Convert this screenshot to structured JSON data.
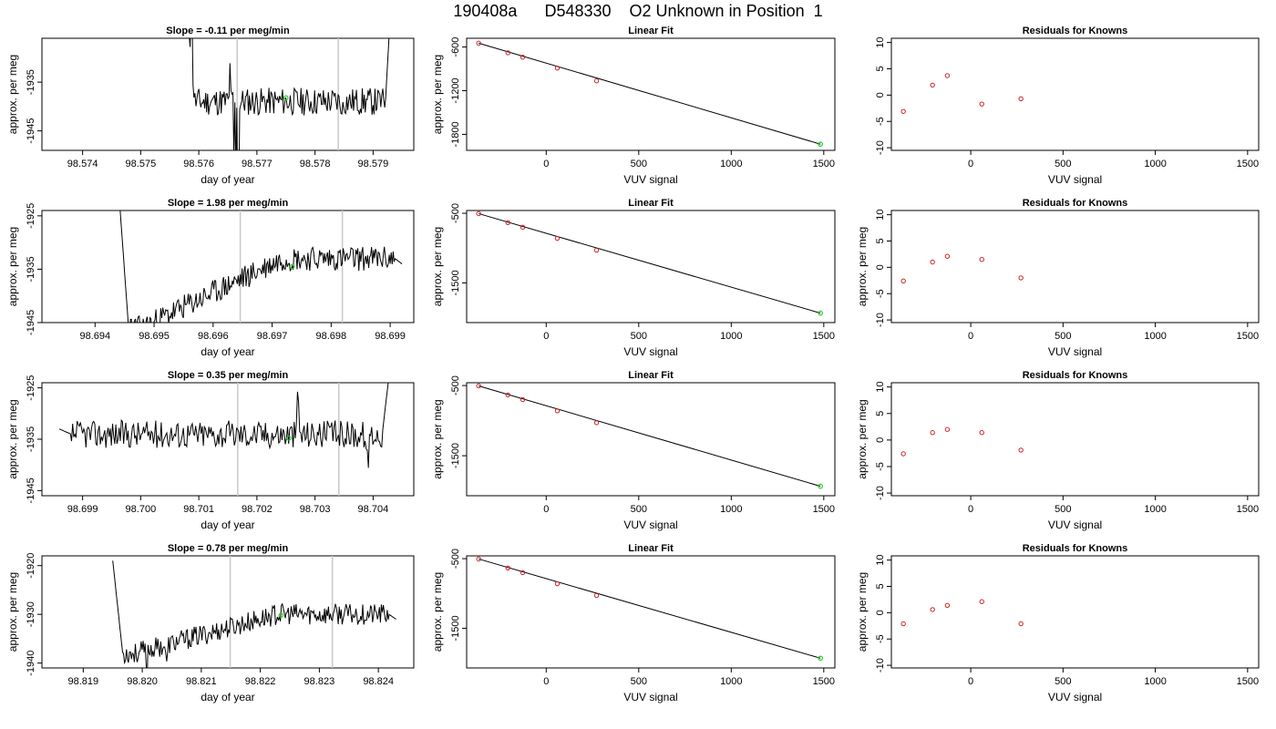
{
  "page_title": "190408a      D548330    O2 Unknown in Position  1",
  "colors": {
    "line": "#000000",
    "marker_known": "#cc2222",
    "marker_unknown": "#22cc22",
    "vline": "#c8c8c8"
  },
  "chart_data": [
    {
      "type": "line",
      "panel": "timeseries",
      "title": "Slope =  -0.11  per meg/min",
      "xlabel": "day of year",
      "ylabel": "approx. per meg",
      "xlim": [
        98.5733,
        98.5797
      ],
      "ylim": [
        -1949,
        -1926
      ],
      "x_ticks": [
        "98.574",
        "98.575",
        "98.576",
        "98.577",
        "98.578",
        "98.579"
      ],
      "y_ticks": [
        "-1945",
        "-1935"
      ],
      "vlines": [
        98.57666,
        98.5784
      ],
      "green_point": [
        98.5775,
        -1938.2
      ],
      "series": [
        {
          "x_start": 98.5758,
          "x_end": 98.5793,
          "n": 210,
          "start": -1920,
          "end": -1920,
          "level": -1939,
          "noise": 1.6,
          "seed": 11,
          "spikes": [
            [
              0.02,
              12
            ],
            [
              0.21,
              9
            ],
            [
              0.23,
              -12
            ],
            [
              0.24,
              -16
            ],
            [
              0.25,
              -20
            ],
            [
              0.76,
              -4
            ]
          ]
        }
      ]
    },
    {
      "type": "scatter",
      "panel": "fit",
      "title": "Linear Fit",
      "xlabel": "VUV signal",
      "ylabel": "approx. per meg",
      "xlim": [
        -430,
        1560
      ],
      "ylim": [
        -2020,
        -480
      ],
      "x_ticks": [
        "0",
        "500",
        "1000",
        "1500"
      ],
      "y_ticks": [
        "-1800",
        "-1200",
        "-600"
      ],
      "known_points": [
        [
          -365,
          -547
        ],
        [
          -207,
          -680
        ],
        [
          -127,
          -740
        ],
        [
          60,
          -890
        ],
        [
          272,
          -1065
        ]
      ],
      "unknown_point": [
        1482,
        -1935
      ],
      "fit_line": [
        [
          -365,
          -547
        ],
        [
          1482,
          -1935
        ]
      ]
    },
    {
      "type": "scatter",
      "panel": "residuals",
      "title": "Residuals for Knowns",
      "xlabel": "VUV signal",
      "ylabel": "",
      "xlim": [
        -430,
        1560
      ],
      "ylim": [
        -10.5,
        10.8
      ],
      "x_ticks": [
        "0",
        "500",
        "1000",
        "1500"
      ],
      "y_ticks": [
        "-10",
        "-5",
        "0",
        "5",
        "10"
      ],
      "points": [
        [
          -365,
          -3.1
        ],
        [
          -207,
          1.9
        ],
        [
          -127,
          3.7
        ],
        [
          60,
          -1.7
        ],
        [
          272,
          -0.7
        ]
      ]
    },
    {
      "type": "line",
      "panel": "timeseries",
      "title": "Slope =  1.98  per meg/min",
      "xlabel": "day of year",
      "ylabel": "approx. per meg",
      "xlim": [
        98.6931,
        98.6994
      ],
      "ylim": [
        -1945,
        -1924
      ],
      "x_ticks": [
        "98.694",
        "98.695",
        "98.696",
        "98.697",
        "98.698",
        "98.699"
      ],
      "y_ticks": [
        "-1945",
        "-1935",
        "-1925"
      ],
      "vlines": [
        98.69646,
        98.69819
      ],
      "green_point": [
        98.69734,
        -1934.5
      ],
      "series": [
        {
          "x_start": 98.6944,
          "x_end": 98.6992,
          "n": 290,
          "start": -1920,
          "end": -1934,
          "level": -1946,
          "level2": -1933,
          "noise": 1.3,
          "seed": 23,
          "spikes": [
            [
              0.05,
              -6
            ],
            [
              0.12,
              -5
            ]
          ]
        }
      ]
    },
    {
      "type": "scatter",
      "panel": "fit",
      "title": "Linear Fit",
      "xlabel": "VUV signal",
      "ylabel": "approx. per meg",
      "xlim": [
        -430,
        1560
      ],
      "ylim": [
        -2070,
        -460
      ],
      "x_ticks": [
        "0",
        "500",
        "1000",
        "1500"
      ],
      "y_ticks": [
        "-1500",
        "-500"
      ],
      "known_points": [
        [
          -365,
          -505
        ],
        [
          -207,
          -634
        ],
        [
          -127,
          -700
        ],
        [
          60,
          -860
        ],
        [
          272,
          -1030
        ]
      ],
      "unknown_point": [
        1482,
        -1934
      ],
      "fit_line": [
        [
          -365,
          -505
        ],
        [
          1482,
          -1934
        ]
      ]
    },
    {
      "type": "scatter",
      "panel": "residuals",
      "title": "Residuals for Knowns",
      "xlabel": "VUV signal",
      "ylabel": "approx. per meg",
      "xlim": [
        -430,
        1560
      ],
      "ylim": [
        -10.5,
        10.8
      ],
      "x_ticks": [
        "0",
        "500",
        "1000",
        "1500"
      ],
      "y_ticks": [
        "-10",
        "-5",
        "0",
        "5",
        "10"
      ],
      "points": [
        [
          -365,
          -2.6
        ],
        [
          -207,
          1.0
        ],
        [
          -127,
          2.1
        ],
        [
          60,
          1.5
        ],
        [
          272,
          -2.0
        ]
      ]
    },
    {
      "type": "line",
      "panel": "timeseries",
      "title": "Slope =  0.35  per meg/min",
      "xlabel": "day of year",
      "ylabel": "approx. per meg",
      "xlim": [
        98.6983,
        98.7047
      ],
      "ylim": [
        -1946,
        -1924
      ],
      "x_ticks": [
        "98.699",
        "98.700",
        "98.701",
        "98.702",
        "98.703",
        "98.704"
      ],
      "y_ticks": [
        "-1945",
        "-1935",
        "-1925"
      ],
      "vlines": [
        98.70167,
        98.70341
      ],
      "green_point": [
        98.70255,
        -1934.8
      ],
      "series": [
        {
          "x_start": 98.6986,
          "x_end": 98.7043,
          "n": 300,
          "start": -1933,
          "end": -1920,
          "level": -1934,
          "noise": 1.5,
          "seed": 37,
          "spikes": [
            [
              0.72,
              7
            ],
            [
              0.93,
              -5
            ]
          ]
        }
      ]
    },
    {
      "type": "scatter",
      "panel": "fit",
      "title": "Linear Fit",
      "xlabel": "VUV signal",
      "ylabel": "approx. per meg",
      "xlim": [
        -430,
        1560
      ],
      "ylim": [
        -2070,
        -460
      ],
      "x_ticks": [
        "0",
        "500",
        "1000",
        "1500"
      ],
      "y_ticks": [
        "-1500",
        "-500"
      ],
      "known_points": [
        [
          -365,
          -505
        ],
        [
          -207,
          -634
        ],
        [
          -127,
          -700
        ],
        [
          60,
          -860
        ],
        [
          272,
          -1030
        ]
      ],
      "unknown_point": [
        1482,
        -1935
      ],
      "fit_line": [
        [
          -365,
          -505
        ],
        [
          1482,
          -1935
        ]
      ]
    },
    {
      "type": "scatter",
      "panel": "residuals",
      "title": "Residuals for Knowns",
      "xlabel": "VUV signal",
      "ylabel": "approx. per meg",
      "xlim": [
        -430,
        1560
      ],
      "ylim": [
        -10.5,
        10.8
      ],
      "x_ticks": [
        "0",
        "500",
        "1000",
        "1500"
      ],
      "y_ticks": [
        "-10",
        "-5",
        "0",
        "5",
        "10"
      ],
      "points": [
        [
          -365,
          -2.6
        ],
        [
          -207,
          1.4
        ],
        [
          -127,
          2.0
        ],
        [
          60,
          1.4
        ],
        [
          272,
          -1.9
        ]
      ]
    },
    {
      "type": "line",
      "panel": "timeseries",
      "title": "Slope =  0.78  per meg/min",
      "xlabel": "day of year",
      "ylabel": "approx. per meg",
      "xlim": [
        98.8183,
        98.8246
      ],
      "ylim": [
        -1941,
        -1918
      ],
      "x_ticks": [
        "98.819",
        "98.820",
        "98.821",
        "98.822",
        "98.823",
        "98.824"
      ],
      "y_ticks": [
        "-1940",
        "-1930",
        "-1920"
      ],
      "vlines": [
        98.82149,
        98.82322
      ],
      "green_point": [
        98.82235,
        -1930.2
      ],
      "series": [
        {
          "x_start": 98.8195,
          "x_end": 98.8243,
          "n": 290,
          "start": -1919,
          "end": -1931,
          "level": -1938,
          "level2": -1930,
          "noise": 1.2,
          "seed": 53,
          "spikes": [
            [
              0.12,
              -4
            ],
            [
              0.19,
              -3
            ]
          ]
        }
      ]
    },
    {
      "type": "scatter",
      "panel": "fit",
      "title": "Linear Fit",
      "xlabel": "VUV signal",
      "ylabel": "approx. per meg",
      "xlim": [
        -430,
        1560
      ],
      "ylim": [
        -2070,
        -460
      ],
      "x_ticks": [
        "0",
        "500",
        "1000",
        "1500"
      ],
      "y_ticks": [
        "-1500",
        "-500"
      ],
      "known_points": [
        [
          -365,
          -505
        ],
        [
          -207,
          -634
        ],
        [
          -127,
          -700
        ],
        [
          60,
          -860
        ],
        [
          272,
          -1030
        ]
      ],
      "unknown_point": [
        1482,
        -1930
      ],
      "fit_line": [
        [
          -365,
          -505
        ],
        [
          1482,
          -1930
        ]
      ]
    },
    {
      "type": "scatter",
      "panel": "residuals",
      "title": "Residuals for Knowns",
      "xlabel": "VUV signal",
      "ylabel": "approx. per meg",
      "xlim": [
        -430,
        1560
      ],
      "ylim": [
        -10.5,
        10.8
      ],
      "x_ticks": [
        "0",
        "500",
        "1000",
        "1500"
      ],
      "y_ticks": [
        "-10",
        "-5",
        "0",
        "5",
        "10"
      ],
      "points": [
        [
          -365,
          -2.1
        ],
        [
          -207,
          0.6
        ],
        [
          -127,
          1.4
        ],
        [
          60,
          2.1
        ],
        [
          272,
          -2.1
        ]
      ]
    }
  ]
}
